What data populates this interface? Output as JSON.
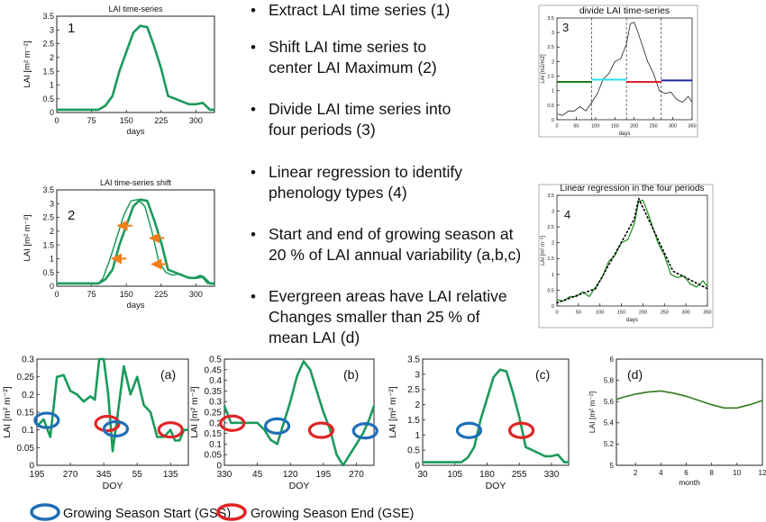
{
  "bullets": [
    {
      "text": "Extract LAI time series (1)"
    },
    {
      "text": "Shift LAI time series to\ncenter LAI Maximum (2)"
    },
    {
      "text": "Divide LAI time series into\nfour periods (3)"
    },
    {
      "text": "Linear regression to identify\nphenology types (4)"
    },
    {
      "text": "Start and end of growing season at\n20 % of LAI annual variability (a,b,c)"
    },
    {
      "text": "Evergreen areas have LAI relative\nChanges smaller than 25 % of\nmean LAI (d)"
    }
  ],
  "legend": {
    "gss_label": "Growing Season Start (GSS)",
    "gse_label": "Growing Season End (GSE)",
    "gss_color": "#1f6fb5",
    "gse_color": "#e02424"
  },
  "colors": {
    "series": "#1b9a5a",
    "evergreen": "#2f7a1d",
    "shift_arrow": "#f07d1a",
    "axis": "#222222"
  },
  "chart_data": [
    {
      "id": "p1",
      "type": "line",
      "title": "LAI time-series",
      "panel_label": "1",
      "xlabel": "days",
      "ylabel": "LAI [m² m⁻²]",
      "xlim": [
        0,
        340
      ],
      "ylim": [
        0,
        3.5
      ],
      "xticks": [
        "0",
        "75",
        "150",
        "225",
        "300"
      ],
      "yticks": [
        "0",
        "0.5",
        "1",
        "1.5",
        "2",
        "2.5",
        "3",
        "3.5"
      ],
      "series": [
        {
          "x": [
            0,
            30,
            60,
            90,
            105,
            120,
            135,
            150,
            165,
            180,
            195,
            210,
            225,
            240,
            255,
            270,
            285,
            300,
            315,
            330,
            340
          ],
          "y": [
            0.1,
            0.1,
            0.1,
            0.1,
            0.25,
            0.6,
            1.5,
            2.2,
            2.9,
            3.15,
            3.1,
            2.4,
            1.6,
            0.6,
            0.5,
            0.4,
            0.3,
            0.3,
            0.35,
            0.1,
            0.1
          ]
        }
      ]
    },
    {
      "id": "p2",
      "type": "line",
      "title": "LAI time-series shift",
      "panel_label": "2",
      "xlabel": "days",
      "ylabel": "LAI [m² m⁻²]",
      "xlim": [
        0,
        340
      ],
      "ylim": [
        0,
        3.5
      ],
      "xticks": [
        "0",
        "75",
        "150",
        "225",
        "300"
      ],
      "yticks": [
        "0",
        "0.5",
        "1",
        "1.5",
        "2",
        "2.5",
        "3",
        "3.5"
      ],
      "series": [
        {
          "x": [
            0,
            30,
            60,
            90,
            105,
            120,
            135,
            150,
            165,
            180,
            195,
            210,
            225,
            240,
            255,
            270,
            285,
            300,
            315,
            330,
            340
          ],
          "y": [
            0.1,
            0.1,
            0.1,
            0.1,
            0.25,
            0.6,
            1.5,
            2.2,
            2.9,
            3.15,
            3.1,
            2.4,
            1.6,
            0.6,
            0.5,
            0.4,
            0.3,
            0.3,
            0.35,
            0.1,
            0.1
          ]
        },
        {
          "x": [
            0,
            30,
            60,
            90,
            100,
            115,
            130,
            145,
            160,
            175,
            190,
            205,
            220,
            235,
            250,
            265,
            280,
            295,
            310,
            325,
            340
          ],
          "y": [
            0.1,
            0.1,
            0.1,
            0.1,
            0.3,
            1.0,
            1.8,
            2.6,
            3.1,
            3.15,
            2.9,
            2.0,
            0.9,
            0.5,
            0.4,
            0.45,
            0.35,
            0.3,
            0.4,
            0.1,
            0.1
          ]
        }
      ],
      "arrows": [
        {
          "x": 163,
          "y": 2.2
        },
        {
          "x": 150,
          "y": 1.0
        },
        {
          "x": 232,
          "y": 1.75
        },
        {
          "x": 236,
          "y": 0.8
        }
      ]
    },
    {
      "id": "p3",
      "type": "line",
      "title": "divide LAI time-series",
      "panel_label": "3",
      "xlabel": "days",
      "ylabel": "LAI [m2/m2]",
      "xlim": [
        0,
        350
      ],
      "ylim": [
        0,
        3.5
      ],
      "xticks": [
        "0",
        "50",
        "100",
        "150",
        "200",
        "250",
        "300",
        "350"
      ],
      "yticks": [
        "0",
        "0.5",
        "1",
        "1.5",
        "2",
        "2.5",
        "3",
        "3.5"
      ],
      "series": [
        {
          "x": [
            0,
            15,
            30,
            45,
            60,
            75,
            90,
            105,
            120,
            135,
            150,
            165,
            180,
            190,
            200,
            210,
            220,
            235,
            250,
            265,
            280,
            295,
            310,
            325,
            340,
            350
          ],
          "y": [
            0.2,
            0.15,
            0.3,
            0.3,
            0.45,
            0.3,
            0.6,
            0.9,
            1.4,
            1.6,
            2.0,
            2.1,
            2.6,
            3.3,
            3.35,
            3.0,
            2.6,
            2.0,
            1.6,
            1.0,
            0.9,
            0.95,
            0.7,
            0.6,
            0.8,
            0.6
          ]
        }
      ],
      "dividers": [
        90,
        180,
        270
      ],
      "period_means": [
        {
          "x": [
            0,
            90
          ],
          "y": 1.3,
          "color": "#1c7a1c"
        },
        {
          "x": [
            90,
            180
          ],
          "y": 1.38,
          "color": "#22e0e6"
        },
        {
          "x": [
            180,
            270
          ],
          "y": 1.3,
          "color": "#e0202a"
        },
        {
          "x": [
            270,
            350
          ],
          "y": 1.35,
          "color": "#1a2aa8"
        }
      ]
    },
    {
      "id": "p4",
      "type": "line",
      "title": "Linear regression in the four periods",
      "panel_label": "4",
      "xlabel": "days",
      "ylabel": "LAI [m² m⁻²]",
      "xlim": [
        0,
        350
      ],
      "ylim": [
        0,
        3.5
      ],
      "xticks": [
        "0",
        "50",
        "100",
        "150",
        "200",
        "250",
        "300",
        "350"
      ],
      "yticks": [
        "0",
        "0.5",
        "1",
        "1.5",
        "2",
        "2.5",
        "3",
        "3.5"
      ],
      "series": [
        {
          "x": [
            0,
            15,
            30,
            45,
            60,
            75,
            90,
            105,
            120,
            135,
            150,
            165,
            180,
            190,
            200,
            210,
            220,
            235,
            250,
            265,
            280,
            295,
            310,
            325,
            340,
            350
          ],
          "y": [
            0.2,
            0.15,
            0.3,
            0.3,
            0.45,
            0.3,
            0.6,
            0.9,
            1.4,
            1.6,
            2.0,
            2.1,
            2.6,
            3.3,
            3.35,
            3.0,
            2.6,
            2.0,
            1.6,
            1.0,
            0.9,
            0.95,
            0.7,
            0.6,
            0.8,
            0.6
          ]
        },
        {
          "x": [
            0,
            90,
            180,
            190,
            270,
            350
          ],
          "y": [
            0.1,
            0.55,
            2.75,
            3.4,
            1.1,
            0.55
          ],
          "style": "dotted"
        }
      ]
    },
    {
      "id": "pa",
      "type": "line",
      "panel_label": "(a)",
      "xlabel": "DOY",
      "ylabel": "LAI [m² m⁻²]",
      "xlim": [
        0,
        340
      ],
      "ylim": [
        0,
        0.3
      ],
      "xticks": [
        "195",
        "270",
        "345",
        "55",
        "135"
      ],
      "xtick_pos": [
        0,
        75,
        150,
        225,
        300
      ],
      "yticks": [
        "0",
        "0.05",
        "0.1",
        "0.15",
        "0.2",
        "0.25",
        "0.3"
      ],
      "series": [
        {
          "x": [
            0,
            15,
            30,
            45,
            60,
            75,
            90,
            105,
            120,
            130,
            140,
            150,
            160,
            170,
            180,
            195,
            210,
            225,
            240,
            255,
            270,
            285,
            300,
            310,
            320,
            330,
            340
          ],
          "y": [
            0.11,
            0.13,
            0.08,
            0.25,
            0.255,
            0.21,
            0.2,
            0.18,
            0.195,
            0.185,
            0.3,
            0.3,
            0.2,
            0.04,
            0.13,
            0.28,
            0.2,
            0.25,
            0.17,
            0.15,
            0.08,
            0.08,
            0.1,
            0.07,
            0.07,
            0.1,
            0.1
          ]
        }
      ],
      "ellipses": [
        {
          "x": 22,
          "y": 0.127,
          "kind": "gss"
        },
        {
          "x": 158,
          "y": 0.118,
          "kind": "gse"
        },
        {
          "x": 177,
          "y": 0.103,
          "kind": "gss"
        },
        {
          "x": 300,
          "y": 0.1,
          "kind": "gse"
        }
      ]
    },
    {
      "id": "pb",
      "type": "line",
      "panel_label": "(b)",
      "xlabel": "DOY",
      "ylabel": "LAI [m² m⁻²]",
      "xlim": [
        0,
        340
      ],
      "ylim": [
        0,
        0.5
      ],
      "xticks": [
        "330",
        "45",
        "120",
        "195",
        "270"
      ],
      "xtick_pos": [
        0,
        75,
        150,
        225,
        300
      ],
      "yticks": [
        "0",
        "0.05",
        "0.1",
        "0.15",
        "0.2",
        "0.25",
        "0.3",
        "0.35",
        "0.4",
        "0.45",
        "0.5"
      ],
      "series": [
        {
          "x": [
            0,
            15,
            30,
            45,
            60,
            75,
            90,
            105,
            120,
            135,
            150,
            165,
            180,
            195,
            210,
            225,
            240,
            255,
            270,
            285,
            300,
            315,
            330,
            340
          ],
          "y": [
            0.28,
            0.2,
            0.2,
            0.2,
            0.2,
            0.2,
            0.17,
            0.12,
            0.1,
            0.2,
            0.3,
            0.42,
            0.49,
            0.45,
            0.35,
            0.25,
            0.17,
            0.05,
            0.0,
            0.05,
            0.1,
            0.15,
            0.22,
            0.28
          ]
        }
      ],
      "ellipses": [
        {
          "x": 18,
          "y": 0.198,
          "kind": "gse"
        },
        {
          "x": 120,
          "y": 0.185,
          "kind": "gss"
        },
        {
          "x": 220,
          "y": 0.165,
          "kind": "gse"
        },
        {
          "x": 320,
          "y": 0.162,
          "kind": "gss"
        }
      ]
    },
    {
      "id": "pc",
      "type": "line",
      "panel_label": "(c)",
      "xlabel": "DOY",
      "ylabel": "LAI [m² m⁻²]",
      "xlim": [
        0,
        340
      ],
      "ylim": [
        0,
        3.5
      ],
      "xticks": [
        "30",
        "105",
        "180",
        "255",
        "330"
      ],
      "xtick_pos": [
        0,
        75,
        150,
        225,
        300
      ],
      "yticks": [
        "0",
        "0.5",
        "1",
        "1.5",
        "2",
        "2.5",
        "3",
        "3.5"
      ],
      "series": [
        {
          "x": [
            0,
            30,
            60,
            90,
            105,
            120,
            135,
            150,
            165,
            180,
            195,
            210,
            225,
            240,
            255,
            270,
            285,
            300,
            315,
            330,
            340
          ],
          "y": [
            0.1,
            0.1,
            0.1,
            0.1,
            0.25,
            0.6,
            1.5,
            2.2,
            2.9,
            3.15,
            3.1,
            2.4,
            1.6,
            0.6,
            0.5,
            0.4,
            0.3,
            0.3,
            0.35,
            0.1,
            0.1
          ]
        }
      ],
      "ellipses": [
        {
          "x": 108,
          "y": 1.15,
          "kind": "gss"
        },
        {
          "x": 230,
          "y": 1.15,
          "kind": "gse"
        }
      ]
    },
    {
      "id": "pd",
      "type": "line",
      "panel_label": "(d)",
      "xlabel": "month",
      "ylabel": "LAI [m² m⁻²]",
      "xlim": [
        0.5,
        12
      ],
      "ylim": [
        5,
        6
      ],
      "xticks": [
        "2",
        "4",
        "6",
        "8",
        "10",
        "12"
      ],
      "xtick_pos": [
        2,
        4,
        6,
        8,
        10,
        12
      ],
      "yticks": [
        "5",
        "5.2",
        "5.4",
        "5.6",
        "5.8",
        "6"
      ],
      "series": [
        {
          "x": [
            0.5,
            1,
            2,
            3,
            4,
            5,
            6,
            7,
            8,
            9,
            10,
            11,
            12
          ],
          "y": [
            5.62,
            5.64,
            5.67,
            5.69,
            5.7,
            5.68,
            5.65,
            5.61,
            5.57,
            5.54,
            5.54,
            5.57,
            5.61
          ]
        }
      ]
    }
  ]
}
